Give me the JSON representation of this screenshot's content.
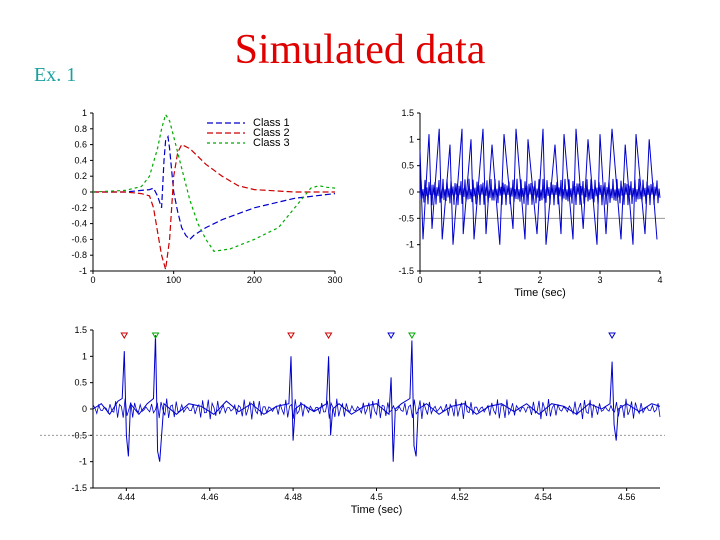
{
  "slide": {
    "label": "Ex. 1",
    "title": "Simulated data"
  },
  "chart_data": [
    {
      "type": "line",
      "title": "",
      "xlabel": "",
      "ylabel": "",
      "xlim": [
        0,
        300
      ],
      "ylim": [
        -1,
        1
      ],
      "x_ticks": [
        "0",
        "100",
        "200",
        "300"
      ],
      "y_ticks": [
        "1",
        "0.8",
        "0.6",
        "0.4",
        "0.2",
        "0",
        "-0.2",
        "-0.4",
        "-0.6",
        "-0.8",
        "-1"
      ],
      "legend": "top-right",
      "series": [
        {
          "name": "Class 1",
          "color": "#0000cc",
          "dash": "6,3",
          "x": [
            0,
            40,
            60,
            70,
            75,
            80,
            85,
            88,
            90,
            93,
            95,
            100,
            105,
            110,
            115,
            120,
            125,
            140,
            160,
            200,
            250,
            300
          ],
          "y": [
            0,
            0,
            0.02,
            0.03,
            0.05,
            -0.05,
            -0.2,
            0.4,
            0.65,
            0.7,
            0.55,
            0.0,
            -0.25,
            -0.45,
            -0.55,
            -0.6,
            -0.55,
            -0.45,
            -0.35,
            -0.2,
            -0.08,
            -0.02
          ]
        },
        {
          "name": "Class 2",
          "color": "#cc0000",
          "dash": "6,3",
          "x": [
            0,
            40,
            60,
            70,
            75,
            80,
            85,
            90,
            95,
            100,
            105,
            110,
            120,
            130,
            140,
            160,
            180,
            200,
            250,
            300
          ],
          "y": [
            0,
            0,
            -0.02,
            -0.05,
            -0.2,
            -0.5,
            -0.8,
            -0.98,
            -0.6,
            0.2,
            0.5,
            0.6,
            0.55,
            0.45,
            0.35,
            0.2,
            0.08,
            0.03,
            0.0,
            0.0
          ]
        },
        {
          "name": "Class 3",
          "color": "#00aa00",
          "dash": "3,3",
          "x": [
            0,
            40,
            60,
            70,
            80,
            85,
            90,
            95,
            100,
            110,
            120,
            130,
            140,
            150,
            170,
            200,
            230,
            250,
            270,
            280,
            290,
            300
          ],
          "y": [
            0,
            0.02,
            0.07,
            0.2,
            0.55,
            0.8,
            0.98,
            0.9,
            0.7,
            0.3,
            -0.1,
            -0.4,
            -0.6,
            -0.75,
            -0.72,
            -0.6,
            -0.45,
            -0.2,
            0.05,
            0.08,
            0.06,
            0.05
          ]
        }
      ]
    },
    {
      "type": "line",
      "title": "",
      "xlabel": "Time (sec)",
      "ylabel": "",
      "xlim": [
        0,
        4
      ],
      "ylim": [
        -1.5,
        1.5
      ],
      "x_ticks": [
        "0",
        "1",
        "2",
        "3",
        "4"
      ],
      "y_ticks": [
        "1.5",
        "1",
        "0.5",
        "0",
        "-0.5",
        "-1",
        "-1.5"
      ],
      "threshold": -0.5,
      "series": [
        {
          "name": "",
          "color": "#0000cc",
          "x": [
            0,
            0.05,
            0.15,
            0.2,
            0.32,
            0.37,
            0.5,
            0.55,
            0.7,
            0.72,
            0.85,
            0.9,
            1.05,
            1.1,
            1.2,
            1.33,
            1.4,
            1.55,
            1.6,
            1.75,
            1.8,
            1.95,
            2.05,
            2.1,
            2.25,
            2.35,
            2.4,
            2.55,
            2.6,
            2.72,
            2.8,
            2.95,
            3.0,
            3.1,
            3.2,
            3.35,
            3.42,
            3.55,
            3.6,
            3.75,
            3.82,
            3.95
          ],
          "y": [
            0.8,
            -0.9,
            1.1,
            -0.7,
            1.2,
            -0.9,
            0.9,
            -1.0,
            1.2,
            -0.8,
            1.0,
            -0.9,
            1.2,
            -0.8,
            0.9,
            -1.0,
            1.1,
            -0.7,
            1.2,
            -0.9,
            1.0,
            -0.8,
            1.2,
            -1.0,
            0.9,
            -0.8,
            1.1,
            -0.9,
            1.2,
            -0.7,
            1.0,
            -1.0,
            1.1,
            -0.8,
            1.2,
            -0.9,
            0.9,
            -1.0,
            1.1,
            -0.8,
            1.0,
            -0.9
          ]
        }
      ]
    },
    {
      "type": "line",
      "title": "",
      "xlabel": "Time (sec)",
      "ylabel": "",
      "xlim": [
        4.432,
        4.568
      ],
      "ylim": [
        -1.5,
        1.5
      ],
      "x_ticks": [
        "4.44",
        "4.46",
        "4.48",
        "4.5",
        "4.52",
        "4.54",
        "4.56"
      ],
      "y_ticks": [
        "1.5",
        "1",
        "0.5",
        "0",
        "-0.5",
        "-1",
        "-1.5"
      ],
      "threshold": -0.5,
      "series": [
        {
          "name": "",
          "color": "#0000cc",
          "x": [
            4.432,
            4.434,
            4.436,
            4.438,
            4.439,
            4.4395,
            4.44,
            4.4405,
            4.441,
            4.443,
            4.445,
            4.4465,
            4.447,
            4.4475,
            4.448,
            4.449,
            4.452,
            4.455,
            4.458,
            4.461,
            4.464,
            4.467,
            4.47,
            4.473,
            4.476,
            4.479,
            4.4795,
            4.48,
            4.4805,
            4.482,
            4.485,
            4.488,
            4.4885,
            4.489,
            4.4895,
            4.491,
            4.494,
            4.497,
            4.5,
            4.503,
            4.5035,
            4.504,
            4.5045,
            4.506,
            4.508,
            4.5085,
            4.509,
            4.5095,
            4.51,
            4.512,
            4.515,
            4.518,
            4.521,
            4.524,
            4.527,
            4.53,
            4.533,
            4.536,
            4.539,
            4.542,
            4.545,
            4.548,
            4.551,
            4.554,
            4.556,
            4.5565,
            4.557,
            4.5575,
            4.558,
            4.56,
            4.563,
            4.566,
            4.568
          ],
          "y": [
            0,
            0.1,
            -0.1,
            0.15,
            0.2,
            1.1,
            -0.5,
            -0.9,
            0.1,
            -0.1,
            0.1,
            0.2,
            1.4,
            -0.8,
            -1.0,
            0.1,
            -0.1,
            0.1,
            0.05,
            -0.1,
            0.15,
            -0.05,
            0.1,
            -0.1,
            0.05,
            0.1,
            1.0,
            -0.6,
            0.0,
            0.1,
            -0.05,
            0.1,
            1.0,
            -0.5,
            0.0,
            0.1,
            -0.1,
            0.05,
            0.1,
            -0.1,
            0.6,
            -1.0,
            0.0,
            0.1,
            0.2,
            1.3,
            -0.7,
            -0.9,
            0.0,
            0.1,
            -0.1,
            0.05,
            0.1,
            -0.1,
            0.05,
            0.1,
            -0.05,
            0.1,
            -0.1,
            0.1,
            0.05,
            -0.1,
            0.1,
            0.0,
            0.1,
            0.9,
            -0.3,
            -0.6,
            0.0,
            0.1,
            -0.05,
            0.1,
            0.05
          ]
        }
      ]
    }
  ]
}
